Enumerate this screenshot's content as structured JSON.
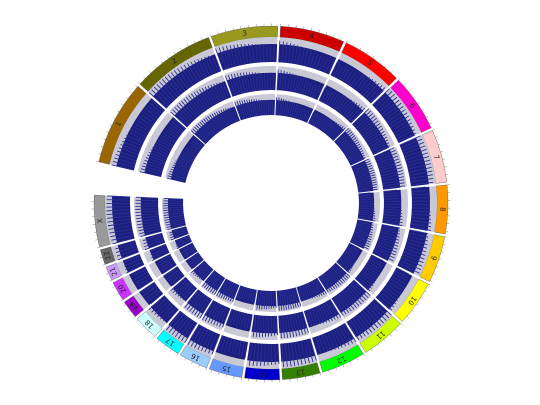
{
  "chromosomes": [
    {
      "label": "1",
      "color": "#996600"
    },
    {
      "label": "2",
      "color": "#666600"
    },
    {
      "label": "3",
      "color": "#99991e"
    },
    {
      "label": "4",
      "color": "#cc0000"
    },
    {
      "label": "5",
      "color": "#ff0000"
    },
    {
      "label": "6",
      "color": "#ff00cc"
    },
    {
      "label": "7",
      "color": "#ffcccc"
    },
    {
      "label": "8",
      "color": "#ff9900"
    },
    {
      "label": "9",
      "color": "#ffcc00"
    },
    {
      "label": "10",
      "color": "#ffff00"
    },
    {
      "label": "11",
      "color": "#ccff00"
    },
    {
      "label": "12",
      "color": "#00ff00"
    },
    {
      "label": "13",
      "color": "#358000"
    },
    {
      "label": "14",
      "color": "#0000cc"
    },
    {
      "label": "15",
      "color": "#6699ff"
    },
    {
      "label": "16",
      "color": "#99ccff"
    },
    {
      "label": "17",
      "color": "#00ffff"
    },
    {
      "label": "18",
      "color": "#ccffff"
    },
    {
      "label": "19",
      "color": "#9900cc"
    },
    {
      "label": "20",
      "color": "#cc33ff"
    },
    {
      "label": "21",
      "color": "#cc99ff"
    },
    {
      "label": "22",
      "color": "#666666"
    },
    {
      "label": "X",
      "color": "#999999"
    }
  ]
}
